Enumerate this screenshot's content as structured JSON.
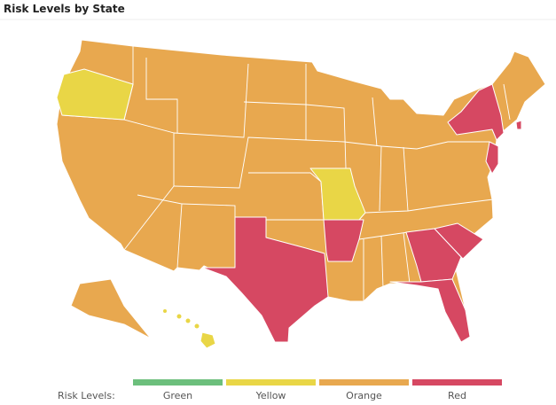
{
  "header": {
    "title": "Risk Levels by State"
  },
  "legend": {
    "label": "Risk Levels:",
    "items": [
      {
        "name": "Green",
        "color": "#6cbf7c"
      },
      {
        "name": "Yellow",
        "color": "#e9d646"
      },
      {
        "name": "Orange",
        "color": "#e8a84f"
      },
      {
        "name": "Red",
        "color": "#d64862"
      }
    ]
  }
}
